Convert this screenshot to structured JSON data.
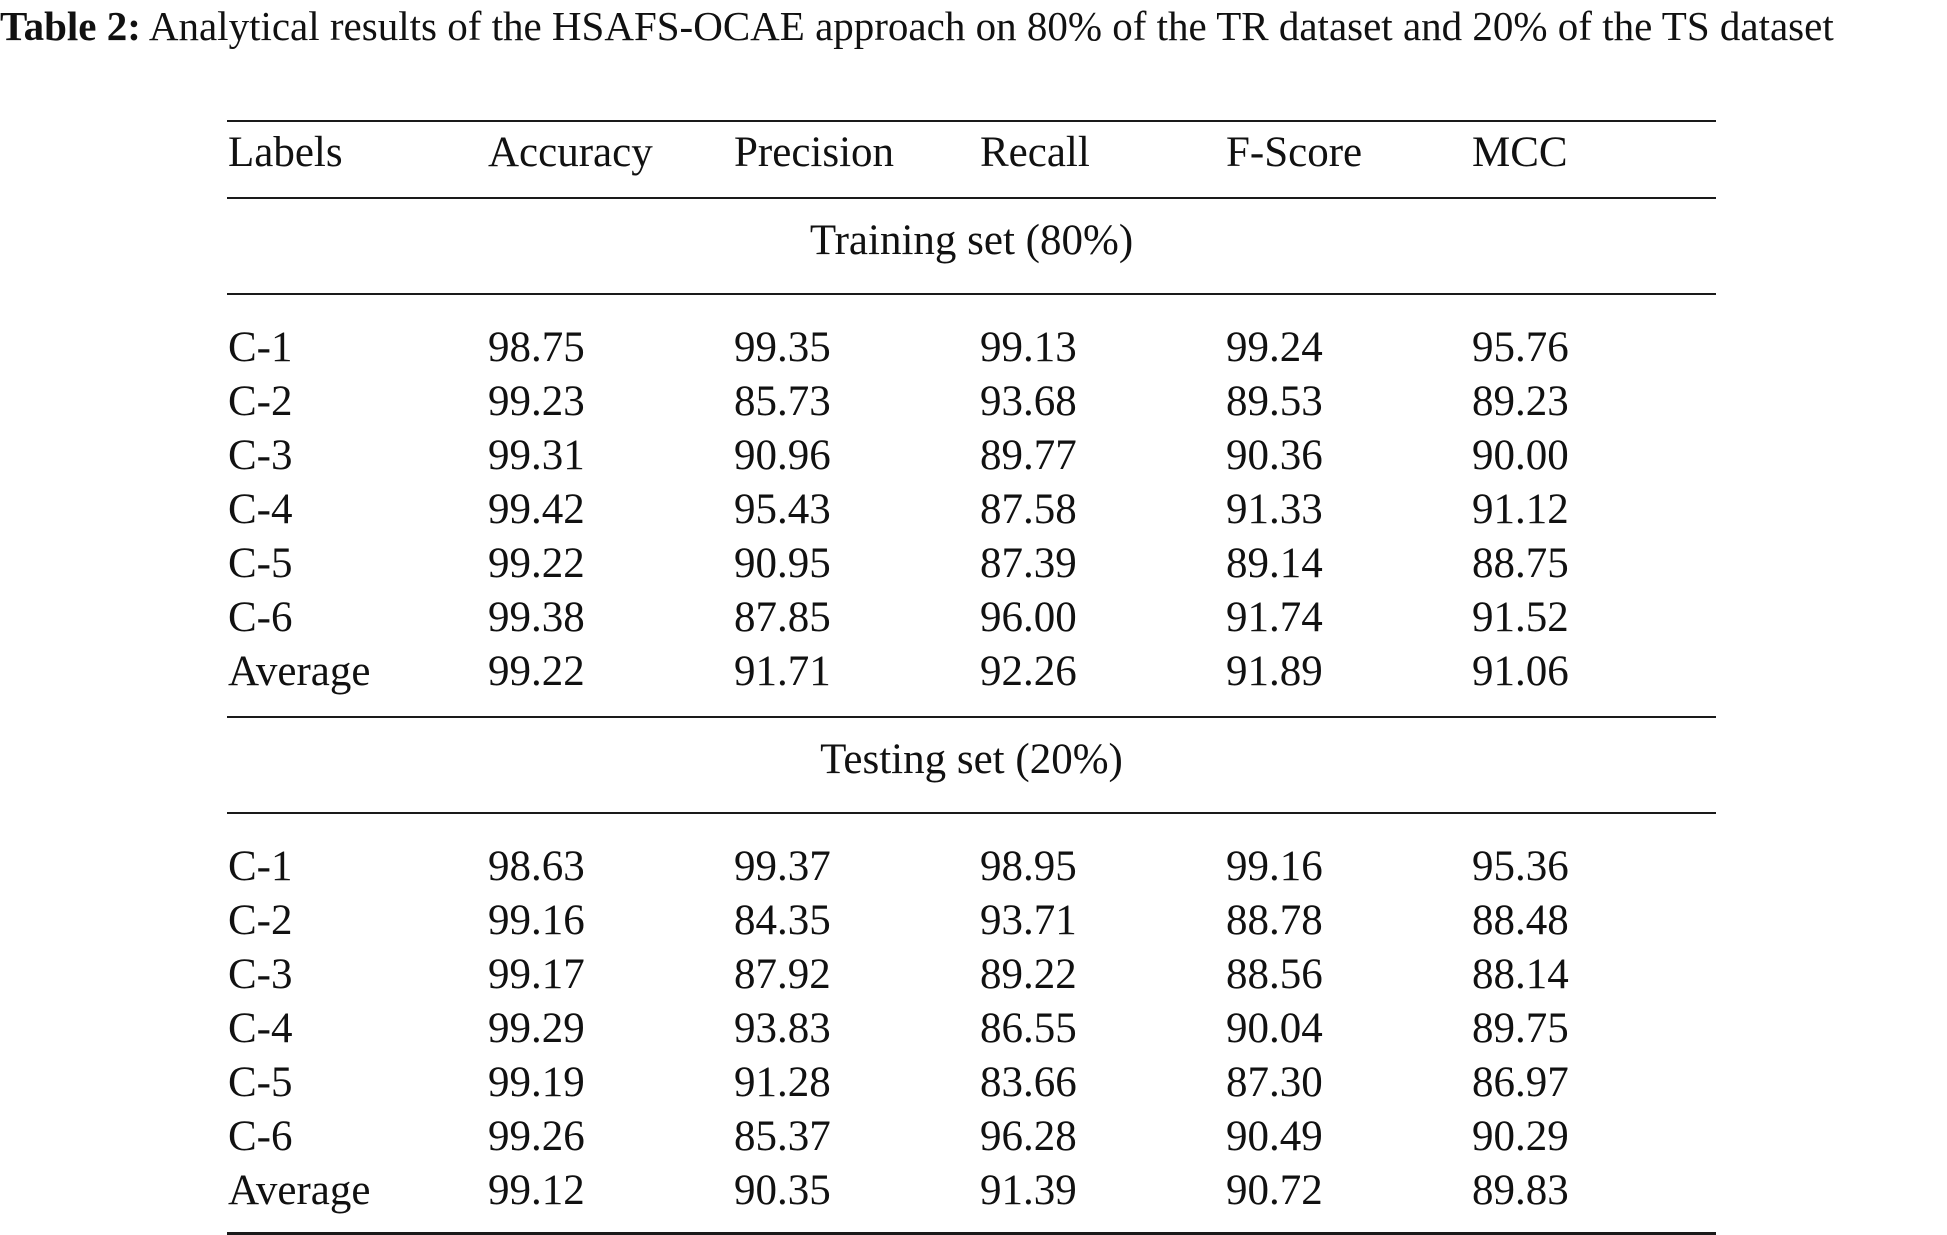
{
  "caption": {
    "label": "Table 2:",
    "text": " Analytical results of the HSAFS-OCAE approach on 80% of the TR dataset and 20% of the TS dataset"
  },
  "table": {
    "headers": [
      "Labels",
      "Accuracy",
      "Precision",
      "Recall",
      "F-Score",
      "MCC"
    ],
    "sections": [
      {
        "title": "Training set (80%)",
        "rows": [
          [
            "C-1",
            "98.75",
            "99.35",
            "99.13",
            "99.24",
            "95.76"
          ],
          [
            "C-2",
            "99.23",
            "85.73",
            "93.68",
            "89.53",
            "89.23"
          ],
          [
            "C-3",
            "99.31",
            "90.96",
            "89.77",
            "90.36",
            "90.00"
          ],
          [
            "C-4",
            "99.42",
            "95.43",
            "87.58",
            "91.33",
            "91.12"
          ],
          [
            "C-5",
            "99.22",
            "90.95",
            "87.39",
            "89.14",
            "88.75"
          ],
          [
            "C-6",
            "99.38",
            "87.85",
            "96.00",
            "91.74",
            "91.52"
          ],
          [
            "Average",
            "99.22",
            "91.71",
            "92.26",
            "91.89",
            "91.06"
          ]
        ]
      },
      {
        "title": "Testing set (20%)",
        "rows": [
          [
            "C-1",
            "98.63",
            "99.37",
            "98.95",
            "99.16",
            "95.36"
          ],
          [
            "C-2",
            "99.16",
            "84.35",
            "93.71",
            "88.78",
            "88.48"
          ],
          [
            "C-3",
            "99.17",
            "87.92",
            "89.22",
            "88.56",
            "88.14"
          ],
          [
            "C-4",
            "99.29",
            "93.83",
            "86.55",
            "90.04",
            "89.75"
          ],
          [
            "C-5",
            "99.19",
            "91.28",
            "83.66",
            "87.30",
            "86.97"
          ],
          [
            "C-6",
            "99.26",
            "85.37",
            "96.28",
            "90.49",
            "90.29"
          ],
          [
            "Average",
            "99.12",
            "90.35",
            "91.39",
            "90.72",
            "89.83"
          ]
        ]
      }
    ]
  }
}
